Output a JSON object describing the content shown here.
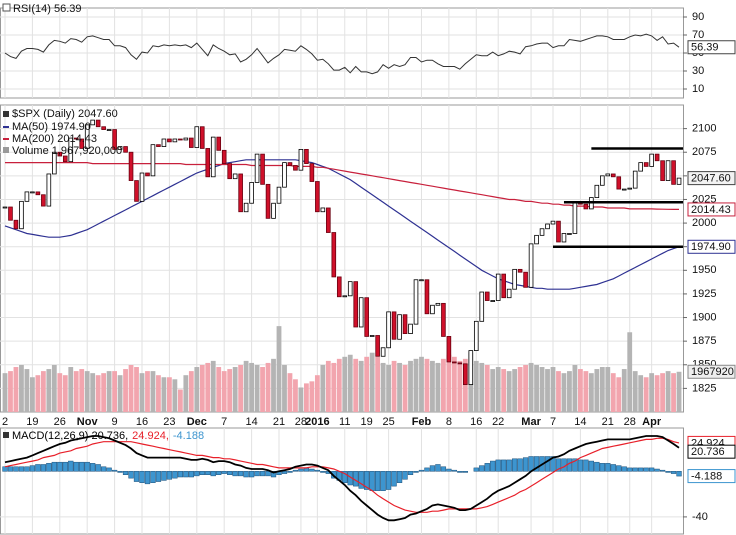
{
  "chart_data": [
    {
      "type": "rsi",
      "title": "RSI(14) 56.39",
      "color": "#333333",
      "last_label": "56.39",
      "ylim": [
        0,
        100
      ],
      "yticks": [
        10,
        30,
        50,
        70,
        90
      ],
      "grid": true,
      "values": [
        50,
        46,
        44,
        52,
        55,
        55,
        54,
        51,
        59,
        64,
        63,
        61,
        66,
        65,
        62,
        68,
        69,
        67,
        65,
        65,
        58,
        58,
        56,
        48,
        43,
        51,
        50,
        58,
        57,
        59,
        58,
        59,
        58,
        59,
        56,
        61,
        54,
        47,
        59,
        55,
        52,
        48,
        49,
        40,
        43,
        48,
        55,
        47,
        39,
        44,
        48,
        54,
        53,
        52,
        58,
        54,
        49,
        42,
        43,
        38,
        31,
        31,
        34,
        28,
        35,
        29,
        29,
        27,
        29,
        37,
        33,
        37,
        35,
        37,
        45,
        45,
        40,
        42,
        42,
        38,
        35,
        35,
        35,
        32,
        38,
        43,
        48,
        47,
        47,
        51,
        47,
        49,
        52,
        51,
        49,
        57,
        58,
        60,
        61,
        61,
        56,
        58,
        58,
        65,
        64,
        63,
        65,
        67,
        69,
        69,
        68,
        65,
        65,
        65,
        68,
        70,
        69,
        71,
        69,
        64,
        68,
        60,
        61,
        56.39
      ]
    },
    {
      "type": "candlestick",
      "title": "$SPX (Daily) 2047.60",
      "last_label": "2047.60",
      "up_color": "#ffffff",
      "down_color": "#d0102a",
      "ylim": [
        1800,
        2125
      ],
      "yticks": [
        1825,
        1850,
        1875,
        1900,
        1925,
        1950,
        1975,
        2000,
        2025,
        2050,
        2075,
        2100
      ],
      "grid": true,
      "categories": [
        "2",
        null,
        null,
        null,
        null,
        "19",
        null,
        null,
        null,
        null,
        "26",
        null,
        null,
        null,
        null,
        "Nov",
        null,
        null,
        null,
        null,
        "9",
        null,
        null,
        null,
        null,
        "16",
        null,
        null,
        null,
        null,
        "23",
        null,
        null,
        null,
        null,
        "Dec",
        null,
        null,
        null,
        null,
        "7",
        null,
        null,
        null,
        null,
        "14",
        null,
        null,
        null,
        null,
        "21",
        null,
        null,
        null,
        "28",
        null,
        null,
        "2016",
        null,
        null,
        null,
        null,
        "11",
        null,
        null,
        null,
        "19",
        null,
        null,
        null,
        "25",
        null,
        null,
        null,
        null,
        null,
        "Feb",
        null,
        null,
        null,
        null,
        "8",
        null,
        null,
        null,
        null,
        "16",
        null,
        null,
        null,
        "22",
        null,
        null,
        null,
        null,
        null,
        "Mar",
        null,
        null,
        null,
        "7",
        null,
        null,
        null,
        null,
        "14",
        null,
        null,
        null,
        null,
        "21",
        null,
        null,
        null,
        "28",
        null,
        null,
        null,
        "Apr",
        null,
        null,
        null,
        null,
        null
      ],
      "close": [
        2017,
        2003,
        1994,
        2023,
        2033,
        2033,
        2030,
        2018,
        2052,
        2075,
        2071,
        2065,
        2090,
        2089,
        2079,
        2104,
        2109,
        2102,
        2099,
        2099,
        2078,
        2081,
        2075,
        2045,
        2023,
        2053,
        2050,
        2083,
        2081,
        2089,
        2086,
        2089,
        2088,
        2090,
        2080,
        2102,
        2079,
        2049,
        2091,
        2077,
        2063,
        2047,
        2052,
        2012,
        2021,
        2043,
        2073,
        2041,
        2005,
        2021,
        2038,
        2064,
        2061,
        2056,
        2078,
        2063,
        2044,
        2012,
        2016,
        1990,
        1943,
        1922,
        1923,
        1938,
        1890,
        1921,
        1880,
        1881,
        1859,
        1868,
        1906,
        1877,
        1903,
        1883,
        1893,
        1940,
        1940,
        1904,
        1913,
        1915,
        1880,
        1853,
        1852,
        1851,
        1829,
        1865,
        1896,
        1927,
        1918,
        1918,
        1946,
        1921,
        1930,
        1951,
        1948,
        1932,
        1978,
        1987,
        1994,
        1999,
        2002,
        1980,
        1989,
        1989,
        2022,
        2020,
        2015,
        2027,
        2040,
        2050,
        2052,
        2049,
        2036,
        2036,
        2037,
        2055,
        2064,
        2060,
        2073,
        2066,
        2045,
        2066,
        2041,
        2047.6
      ],
      "series": [
        {
          "name": "MA(50) 1974.90",
          "last_label": "1974.90",
          "color": "#2e3192",
          "values": [
            1997,
            1995,
            1993,
            1991,
            1989,
            1988,
            1987,
            1986,
            1985,
            1985,
            1985,
            1986,
            1987,
            1989,
            1991,
            1993,
            1996,
            1999,
            2002,
            2005,
            2008,
            2011,
            2014,
            2017,
            2020,
            2023,
            2026,
            2029,
            2032,
            2035,
            2038,
            2041,
            2044,
            2047,
            2050,
            2053,
            2055,
            2057,
            2059,
            2061,
            2063,
            2064,
            2065,
            2066,
            2067,
            2067,
            2067,
            2067,
            2067,
            2067,
            2067,
            2067,
            2067,
            2067,
            2066,
            2065,
            2064,
            2062,
            2060,
            2058,
            2055,
            2052,
            2049,
            2046,
            2042,
            2038,
            2034,
            2030,
            2026,
            2022,
            2018,
            2014,
            2010,
            2006,
            2002,
            1998,
            1994,
            1990,
            1986,
            1982,
            1978,
            1974,
            1970,
            1966,
            1962,
            1958,
            1954,
            1950,
            1947,
            1944,
            1941,
            1939,
            1937,
            1935,
            1934,
            1933,
            1932,
            1931,
            1931,
            1930,
            1930,
            1930,
            1930,
            1930,
            1931,
            1932,
            1933,
            1934,
            1935,
            1937,
            1939,
            1941,
            1944,
            1947,
            1950,
            1953,
            1956,
            1959,
            1962,
            1965,
            1968,
            1971,
            1973,
            1974.9
          ]
        },
        {
          "name": "MA(200) 2014.43",
          "last_label": "2014.43",
          "color": "#c8203c",
          "values": [
            2064,
            2064,
            2064,
            2064,
            2064,
            2064,
            2064,
            2064,
            2064,
            2064,
            2064,
            2064,
            2064,
            2064,
            2064,
            2064,
            2063,
            2063,
            2063,
            2063,
            2063,
            2063,
            2063,
            2063,
            2063,
            2063,
            2063,
            2063,
            2063,
            2063,
            2063,
            2063,
            2063,
            2062,
            2062,
            2062,
            2062,
            2062,
            2062,
            2062,
            2062,
            2062,
            2062,
            2062,
            2062,
            2061,
            2061,
            2061,
            2061,
            2061,
            2061,
            2061,
            2061,
            2060,
            2060,
            2060,
            2060,
            2059,
            2059,
            2058,
            2057,
            2056,
            2055,
            2054,
            2053,
            2052,
            2051,
            2050,
            2049,
            2048,
            2047,
            2046,
            2045,
            2044,
            2043,
            2042,
            2041,
            2040,
            2039,
            2038,
            2037,
            2036,
            2035,
            2034,
            2033,
            2032,
            2031,
            2030,
            2029,
            2028,
            2027,
            2026,
            2025,
            2025,
            2024,
            2023,
            2023,
            2022,
            2021,
            2021,
            2020,
            2020,
            2019,
            2019,
            2018,
            2018,
            2018,
            2017,
            2017,
            2017,
            2016,
            2016,
            2016,
            2016,
            2015,
            2015,
            2015,
            2015,
            2015,
            2014.8,
            2014.7,
            2014.6,
            2014.5,
            2014.43
          ]
        }
      ],
      "volume": {
        "name": "Volume 1,967,920,000",
        "last_label": "1967920",
        "ylim": [
          0,
          4500000000.0
        ],
        "up_color": "#b4b4b4",
        "down_color": "#f2a5ae",
        "values": [
          1900000000.0,
          2000000000.0,
          2200000000.0,
          2300000000.0,
          2100000000.0,
          1700000000.0,
          1800000000.0,
          2000000000.0,
          2100000000.0,
          2300000000.0,
          1900000000.0,
          1800000000.0,
          2200000000.0,
          2000000000.0,
          2100000000.0,
          2000000000.0,
          1900000000.0,
          1800000000.0,
          1900000000.0,
          2000000000.0,
          2000000000.0,
          1800000000.0,
          2100000000.0,
          2300000000.0,
          2200000000.0,
          1900000000.0,
          2000000000.0,
          2000000000.0,
          1800000000.0,
          1700000000.0,
          1700000000.0,
          1600000000.0,
          1100000000.0,
          1800000000.0,
          2000000000.0,
          2200000000.0,
          2300000000.0,
          2400000000.0,
          2500000000.0,
          2200000000.0,
          2000000000.0,
          2100000000.0,
          2200000000.0,
          2300000000.0,
          2500000000.0,
          2400000000.0,
          2300000000.0,
          2200000000.0,
          2400000000.0,
          2600000000.0,
          4200000000.0,
          2300000000.0,
          1900000000.0,
          1600000000.0,
          1200000000.0,
          1400000000.0,
          1500000000.0,
          1800000000.0,
          2300000000.0,
          2500000000.0,
          2400000000.0,
          2600000000.0,
          2700000000.0,
          2800000000.0,
          2600000000.0,
          2500000000.0,
          2700000000.0,
          2900000000.0,
          2700000000.0,
          2400000000.0,
          2300000000.0,
          2500000000.0,
          2400000000.0,
          2300000000.0,
          2500000000.0,
          2600000000.0,
          2700000000.0,
          2600000000.0,
          2500000000.0,
          2400000000.0,
          2600000000.0,
          2800000000.0,
          2700000000.0,
          2500000000.0,
          2600000000.0,
          2900000000.0,
          2500000000.0,
          2400000000.0,
          2300000000.0,
          2100000000.0,
          2200000000.0,
          2100000000.0,
          2000000000.0,
          2100000000.0,
          2200000000.0,
          2300000000.0,
          2400000000.0,
          2300000000.0,
          2200000000.0,
          2100000000.0,
          2200000000.0,
          2000000000.0,
          1900000000.0,
          2000000000.0,
          2300000000.0,
          2100000000.0,
          2000000000.0,
          1900000000.0,
          2100000000.0,
          2200000000.0,
          2200000000.0,
          1900000000.0,
          1700000000.0,
          2100000000.0,
          3900000000.0,
          2000000000.0,
          1800000000.0,
          1700000000.0,
          1900000000.0,
          1800000000.0,
          1900000000.0,
          2000000000.0,
          1900000000.0,
          1967920000.0
        ]
      },
      "hlines": [
        {
          "value": 2079,
          "start": 107
        },
        {
          "value": 2022,
          "start": 102
        },
        {
          "value": 1975,
          "start": 100
        }
      ]
    },
    {
      "type": "macd",
      "legend": [
        "MACD(12,26,9) 20.736,",
        "24.924,",
        "-4.188"
      ],
      "ylim": [
        -55,
        38
      ],
      "yticks": [
        -40
      ],
      "macd": {
        "color": "#000000",
        "last_label": "20.736",
        "values": [
          8,
          9,
          10,
          11,
          12,
          14,
          16,
          18,
          20,
          22,
          24,
          25,
          27,
          28,
          29,
          30,
          31,
          31,
          30,
          29,
          27,
          25,
          23,
          20,
          16,
          14,
          12,
          12,
          12,
          12,
          12,
          12,
          12,
          11,
          10,
          10,
          11,
          10,
          8,
          9,
          9,
          8,
          6,
          5,
          3,
          2,
          2,
          2,
          1,
          -1,
          0,
          1,
          2,
          4,
          5,
          6,
          6,
          5,
          3,
          1,
          -4,
          -8,
          -12,
          -17,
          -21,
          -26,
          -30,
          -34,
          -38,
          -41,
          -43,
          -43,
          -42,
          -41,
          -38,
          -37,
          -35,
          -33,
          -30,
          -29,
          -30,
          -31,
          -32,
          -34,
          -34,
          -33,
          -30,
          -27,
          -24,
          -20,
          -17,
          -15,
          -13,
          -10,
          -7,
          -4,
          0,
          3,
          6,
          9,
          12,
          13,
          15,
          18,
          20,
          22,
          24,
          25,
          26,
          27,
          28,
          28,
          28,
          28,
          28,
          29,
          30,
          31,
          31,
          31,
          30,
          27,
          24,
          20.736
        ]
      },
      "signal": {
        "color": "#e8202a",
        "last_label": "24.924",
        "values": [
          4,
          5,
          6,
          7,
          8,
          9,
          10,
          12,
          13,
          14,
          16,
          17,
          18,
          20,
          21,
          22,
          24,
          25,
          26,
          26,
          26,
          26,
          26,
          26,
          25,
          24,
          23,
          22,
          21,
          20,
          19,
          18,
          17,
          16,
          15,
          14,
          14,
          13,
          12,
          12,
          11,
          11,
          10,
          9,
          8,
          7,
          6,
          6,
          5,
          4,
          3,
          3,
          3,
          3,
          3,
          3,
          4,
          4,
          4,
          3,
          2,
          0,
          -2,
          -5,
          -8,
          -11,
          -14,
          -17,
          -21,
          -24,
          -27,
          -30,
          -32,
          -34,
          -35,
          -36,
          -36,
          -36,
          -35,
          -35,
          -34,
          -33,
          -33,
          -33,
          -33,
          -33,
          -33,
          -32,
          -31,
          -29,
          -27,
          -25,
          -23,
          -21,
          -18,
          -16,
          -13,
          -10,
          -7,
          -4,
          -1,
          2,
          4,
          7,
          9,
          12,
          14,
          16,
          18,
          20,
          21,
          22,
          23,
          24,
          25,
          26,
          27,
          28,
          28,
          29,
          29,
          28,
          26,
          24.924
        ]
      },
      "histogram": {
        "color": "#3d95cf",
        "last_label": "-4.188",
        "values": [
          4,
          4,
          4,
          4,
          4,
          5,
          6,
          6,
          7,
          8,
          8,
          8,
          9,
          8,
          8,
          8,
          7,
          6,
          4,
          3,
          1,
          -1,
          -3,
          -6,
          -9,
          -10,
          -11,
          -10,
          -9,
          -8,
          -7,
          -6,
          -5,
          -5,
          -5,
          -4,
          -3,
          -3,
          -4,
          -3,
          -2,
          -3,
          -4,
          -4,
          -5,
          -5,
          -4,
          -4,
          -4,
          -5,
          -3,
          -2,
          -1,
          1,
          2,
          3,
          2,
          1,
          -1,
          -2,
          -6,
          -8,
          -10,
          -12,
          -13,
          -15,
          -16,
          -17,
          -17,
          -17,
          -16,
          -13,
          -10,
          -7,
          -3,
          -1,
          1,
          3,
          5,
          6,
          4,
          2,
          1,
          -1,
          -1,
          0,
          3,
          5,
          7,
          9,
          10,
          10,
          10,
          11,
          11,
          12,
          13,
          13,
          13,
          13,
          13,
          11,
          11,
          11,
          11,
          10,
          10,
          9,
          8,
          7,
          7,
          6,
          5,
          4,
          3,
          3,
          3,
          3,
          3,
          2,
          1,
          -1,
          -2,
          -4.188
        ]
      }
    }
  ]
}
